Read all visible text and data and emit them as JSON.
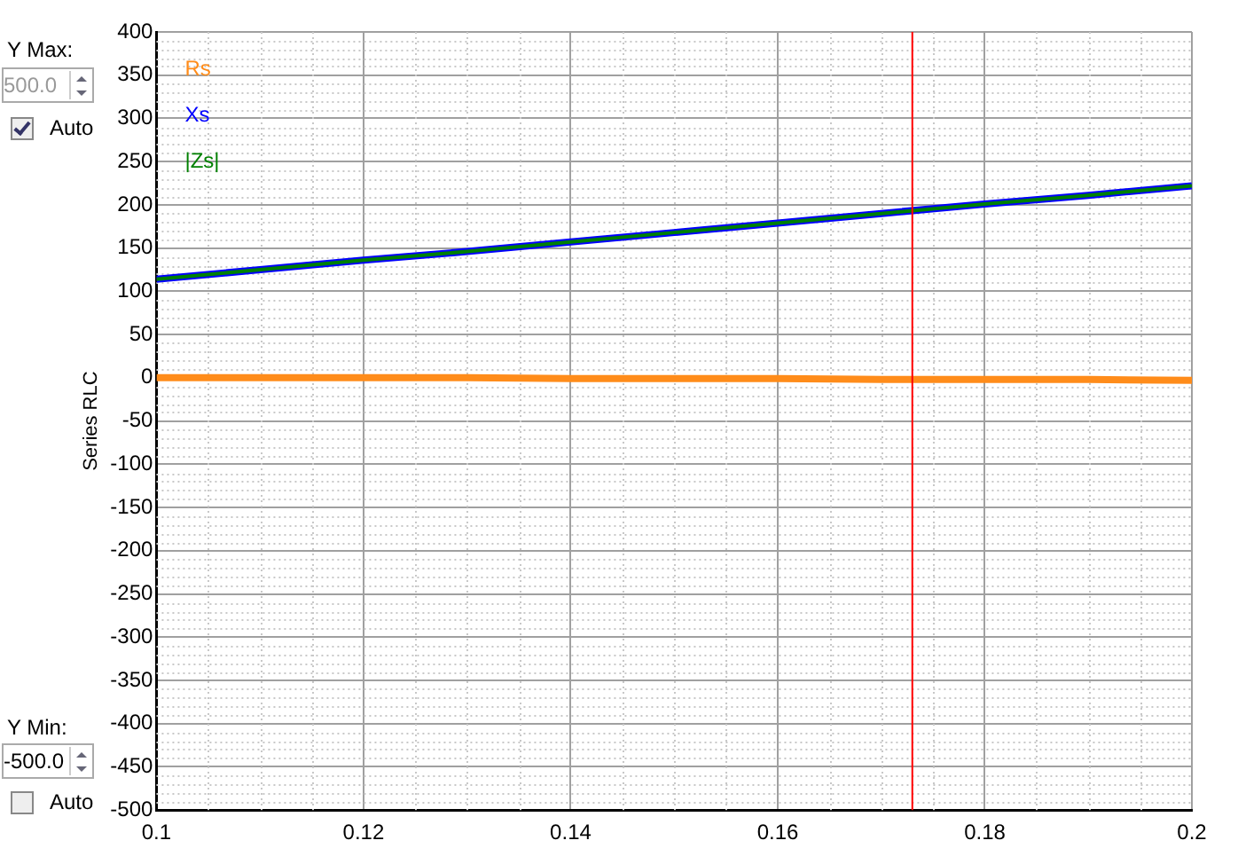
{
  "chart_data": {
    "type": "line",
    "ylabel": "Series RLC",
    "x": [
      0.1,
      0.11,
      0.12,
      0.13,
      0.14,
      0.15,
      0.16,
      0.17,
      0.18,
      0.19,
      0.2
    ],
    "series": [
      {
        "name": "Rs",
        "color": "#ff8c1a",
        "values": [
          0,
          0,
          0,
          0,
          -1,
          -1,
          -1,
          -2,
          -2,
          -2,
          -3
        ]
      },
      {
        "name": "Xs",
        "color": "#0000ff",
        "values": [
          114,
          125,
          136,
          146,
          157,
          168,
          179,
          190,
          201,
          211,
          222
        ]
      },
      {
        "name": "|Zs|",
        "color": "#008000",
        "values": [
          114,
          125,
          136,
          146,
          157,
          168,
          179,
          190,
          201,
          211,
          222
        ]
      }
    ],
    "xlim": [
      0.1,
      0.2
    ],
    "xticks": [
      0.1,
      0.12,
      0.14,
      0.16,
      0.18,
      0.2
    ],
    "ylim": [
      -500,
      400
    ],
    "yticks": [
      -500,
      -450,
      -400,
      -350,
      -300,
      -250,
      -200,
      -150,
      -100,
      -50,
      0,
      50,
      100,
      150,
      200,
      250,
      300,
      350,
      400
    ],
    "ref_lines": [
      {
        "axis": "x",
        "value": 0.173,
        "color": "#ff0000"
      }
    ],
    "grid": true,
    "legend": "top left",
    "marker": "none",
    "line_style": "solid",
    "annotations": [
      "Y Max:",
      "500.0",
      "Auto",
      "Y Min:",
      "-500.0",
      "Auto"
    ]
  }
}
